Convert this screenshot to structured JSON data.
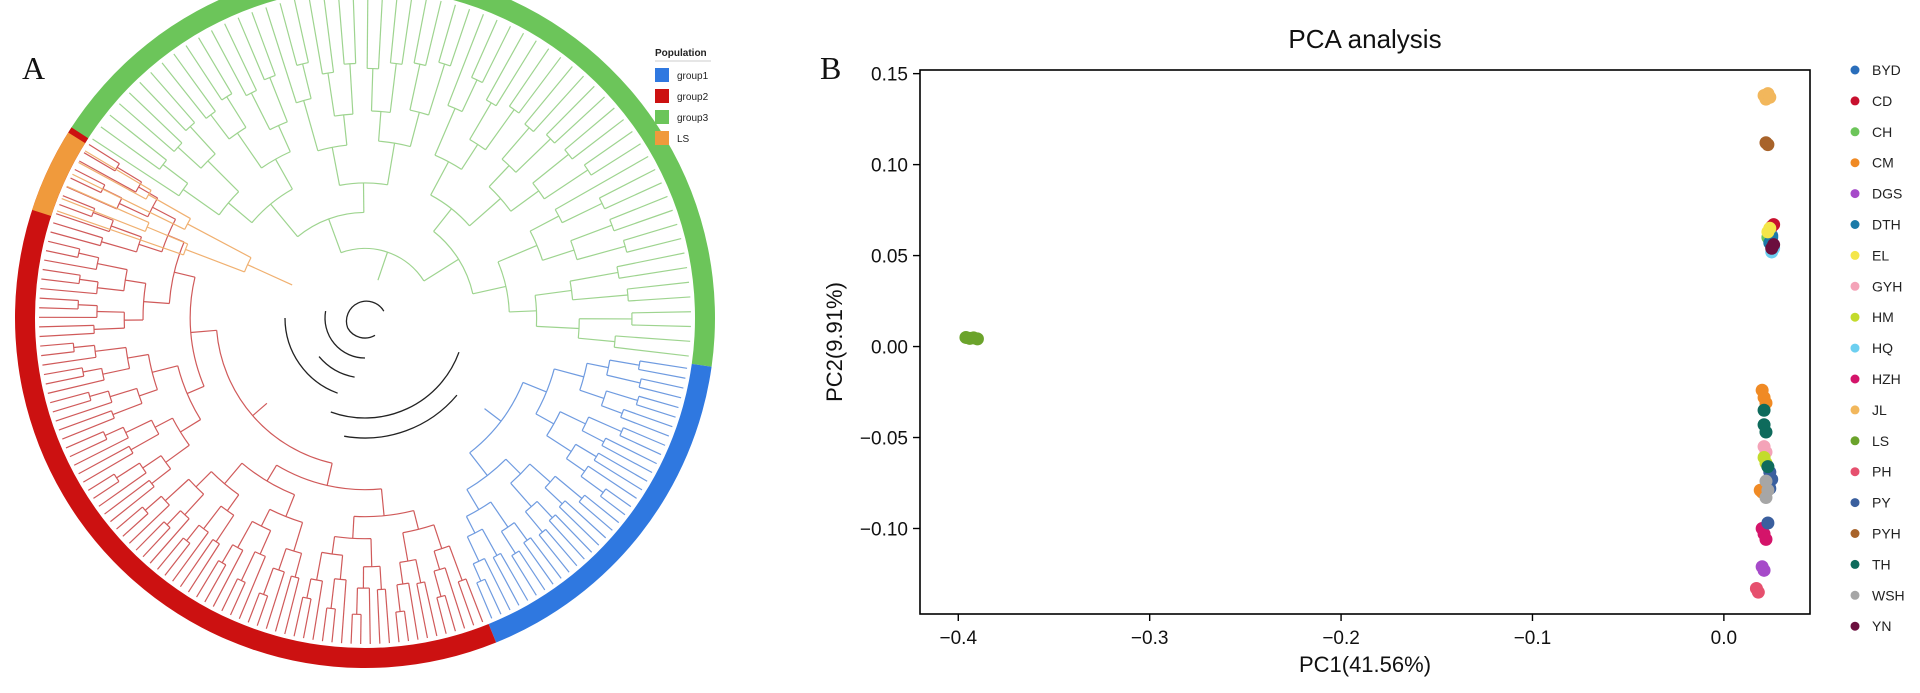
{
  "panel_a": {
    "label": "A",
    "legend": {
      "title": "Population",
      "items": [
        {
          "name": "group1",
          "color": "#2F78E0"
        },
        {
          "name": "group2",
          "color": "#CC1111"
        },
        {
          "name": "group3",
          "color": "#6CC55A"
        },
        {
          "name": "LS",
          "color": "#F09A3C"
        }
      ]
    }
  },
  "panel_b": {
    "label": "B"
  },
  "chart_data": [
    {
      "type": "scatter",
      "title": "PCA analysis",
      "xlabel": "PC1(41.56%)",
      "ylabel": "PC2(9.91%)",
      "xlim": [
        -0.42,
        0.045
      ],
      "ylim": [
        -0.147,
        0.152
      ],
      "xticks": [
        -0.4,
        -0.3,
        -0.2,
        -0.1,
        0.0
      ],
      "xtick_labels": [
        "−0.4",
        "−0.3",
        "−0.2",
        "−0.1",
        "0.0"
      ],
      "yticks": [
        0.15,
        0.1,
        0.05,
        0.0,
        -0.05,
        -0.1
      ],
      "ytick_labels": [
        "0.15",
        "0.10",
        "0.05",
        "0.00",
        "−0.05",
        "−0.10"
      ],
      "grid": false,
      "legend_position": "right",
      "series": [
        {
          "name": "BYD",
          "color": "#2A6EBB",
          "points": [
            [
              0.024,
              0.058
            ],
            [
              0.025,
              0.061
            ]
          ]
        },
        {
          "name": "CD",
          "color": "#C8102E",
          "points": [
            [
              0.025,
              0.066
            ],
            [
              0.026,
              0.067
            ]
          ]
        },
        {
          "name": "CH",
          "color": "#6CC55A",
          "points": [
            [
              0.024,
              0.062
            ],
            [
              0.023,
              0.06
            ]
          ]
        },
        {
          "name": "CM",
          "color": "#F08A24",
          "points": [
            [
              0.02,
              -0.024
            ],
            [
              0.021,
              -0.028
            ],
            [
              0.022,
              -0.031
            ],
            [
              0.019,
              -0.079
            ],
            [
              0.02,
              -0.08
            ]
          ]
        },
        {
          "name": "DGS",
          "color": "#A64AC9",
          "points": [
            [
              0.02,
              -0.121
            ],
            [
              0.021,
              -0.123
            ]
          ]
        },
        {
          "name": "DTH",
          "color": "#1B7BA8",
          "points": [
            [
              0.024,
              0.057
            ],
            [
              0.025,
              0.06
            ]
          ]
        },
        {
          "name": "EL",
          "color": "#F4E64A",
          "points": [
            [
              0.024,
              0.065
            ],
            [
              0.023,
              0.063
            ]
          ]
        },
        {
          "name": "GYH",
          "color": "#F4A3B8",
          "points": [
            [
              0.021,
              -0.055
            ],
            [
              0.022,
              -0.058
            ]
          ]
        },
        {
          "name": "HM",
          "color": "#C3DB2C",
          "points": [
            [
              0.021,
              -0.061
            ],
            [
              0.022,
              -0.064
            ]
          ]
        },
        {
          "name": "HQ",
          "color": "#6CCFF0",
          "points": [
            [
              0.025,
              0.052
            ],
            [
              0.026,
              0.054
            ]
          ]
        },
        {
          "name": "HZH",
          "color": "#D4146A",
          "points": [
            [
              0.02,
              -0.1
            ],
            [
              0.021,
              -0.103
            ],
            [
              0.022,
              -0.106
            ]
          ]
        },
        {
          "name": "JL",
          "color": "#F2B75C",
          "points": [
            [
              0.021,
              0.138
            ],
            [
              0.022,
              0.136
            ],
            [
              0.023,
              0.139
            ],
            [
              0.024,
              0.137
            ]
          ]
        },
        {
          "name": "LS",
          "color": "#6BA32B",
          "points": [
            [
              -0.396,
              0.005
            ],
            [
              -0.394,
              0.0045
            ],
            [
              -0.392,
              0.0048
            ],
            [
              -0.39,
              0.0042
            ]
          ]
        },
        {
          "name": "PH",
          "color": "#E6506E",
          "points": [
            [
              0.017,
              -0.133
            ],
            [
              0.018,
              -0.135
            ]
          ]
        },
        {
          "name": "PY",
          "color": "#3A5F9E",
          "points": [
            [
              0.024,
              -0.069
            ],
            [
              0.025,
              -0.073
            ],
            [
              0.024,
              -0.078
            ],
            [
              0.023,
              -0.097
            ]
          ]
        },
        {
          "name": "PYH",
          "color": "#A8632A",
          "points": [
            [
              0.022,
              0.112
            ],
            [
              0.023,
              0.111
            ]
          ]
        },
        {
          "name": "TH",
          "color": "#0E6B5C",
          "points": [
            [
              0.021,
              -0.035
            ],
            [
              0.021,
              -0.043
            ],
            [
              0.022,
              -0.047
            ],
            [
              0.023,
              -0.066
            ]
          ]
        },
        {
          "name": "WSH",
          "color": "#A6A6A6",
          "points": [
            [
              0.022,
              -0.074
            ],
            [
              0.023,
              -0.079
            ],
            [
              0.022,
              -0.083
            ]
          ]
        },
        {
          "name": "YN",
          "color": "#6B0F3E",
          "points": [
            [
              0.025,
              0.054
            ],
            [
              0.026,
              0.056
            ]
          ]
        }
      ]
    }
  ]
}
